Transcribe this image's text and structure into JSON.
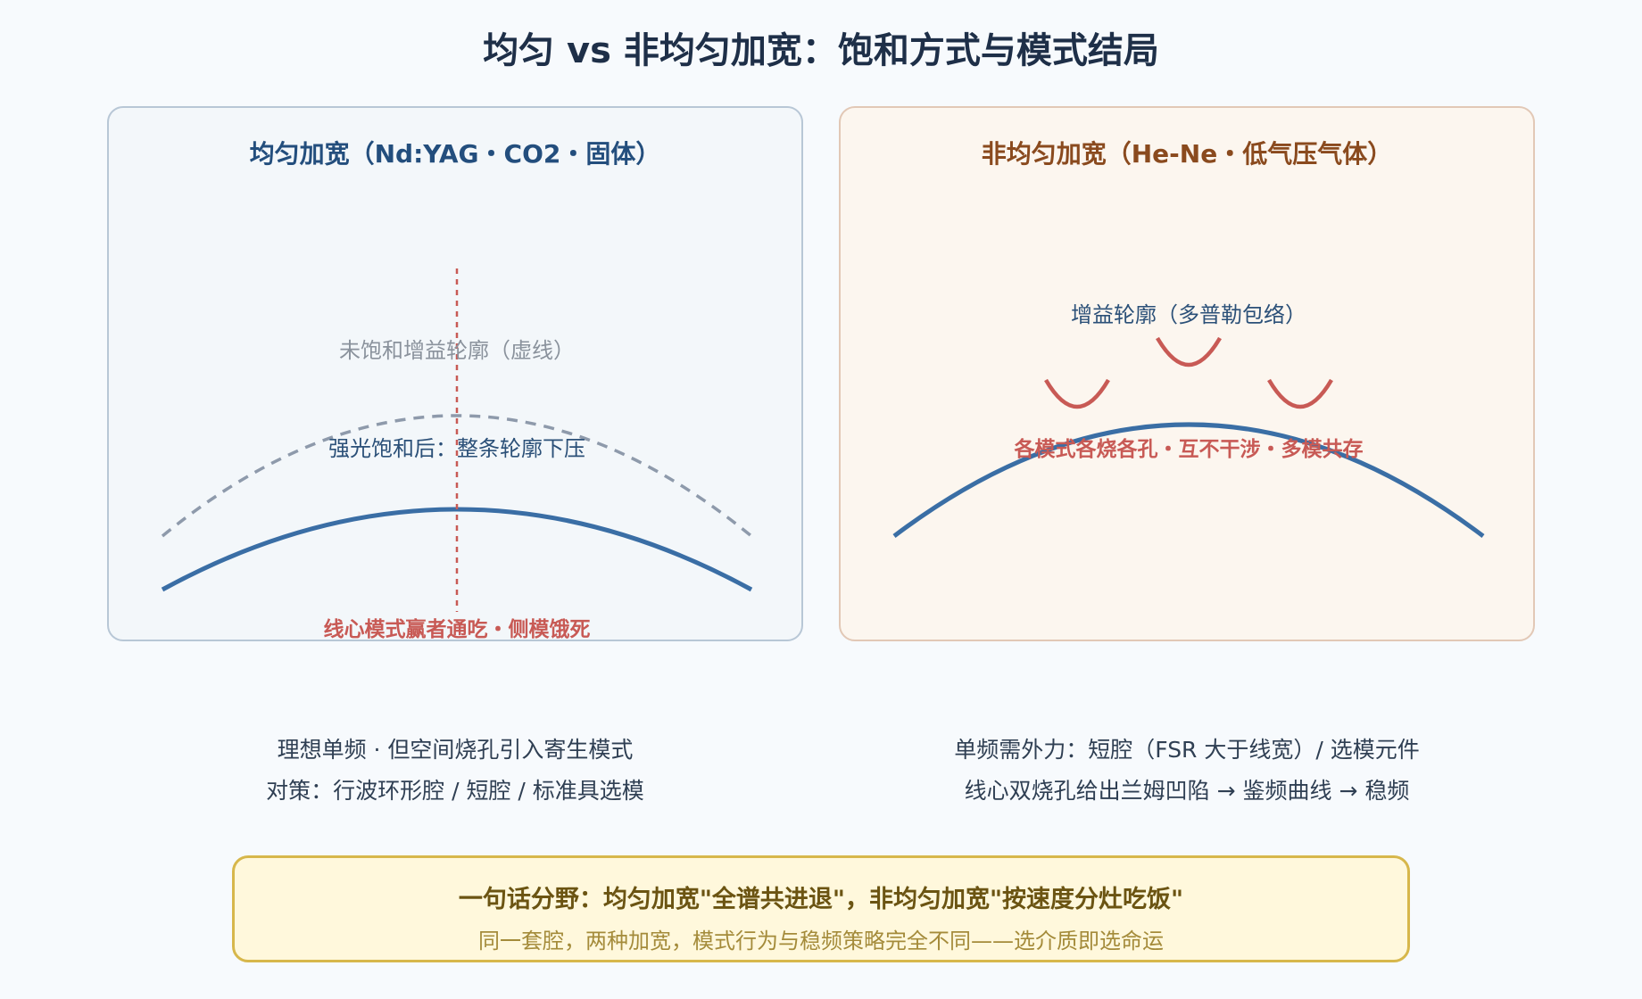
{
  "title": "均匀 vs 非均匀加宽：饱和方式与模式结局",
  "colors": {
    "curve": "#3a6ea5",
    "dashed": "#8e9aab",
    "accent_red": "#c85a55",
    "label_blue": "#2b5078",
    "summary_bg": "#fff8dc",
    "summary_border": "#d7b74b"
  },
  "left_panel": {
    "title": "均匀加宽（Nd:YAG・CO2・固体）",
    "label_unsaturated": "未饱和增益轮廓（虚线）",
    "label_saturated": "强光饱和后：整条轮廓下压",
    "label_result": "线心模式赢者通吃・侧模饿死",
    "captions": [
      "理想单频 · 但空间烧孔引入寄生模式",
      "对策：行波环形腔 / 短腔 / 标准具选模"
    ]
  },
  "right_panel": {
    "title": "非均匀加宽（He-Ne・低气压气体）",
    "label_gain": "增益轮廓（多普勒包络）",
    "label_result": "各模式各烧各孔・互不干涉・多模共存",
    "captions": [
      "单频需外力：短腔（FSR 大于线宽）/ 选模元件",
      "线心双烧孔给出兰姆凹陷 → 鉴频曲线 → 稳频"
    ]
  },
  "summary": {
    "main": "一句话分野：均匀加宽\"全谱共进退\"，非均匀加宽\"按速度分灶吃饭\"",
    "sub": "同一套腔，两种加宽，模式行为与稳频策略完全不同——选介质即选命运"
  }
}
